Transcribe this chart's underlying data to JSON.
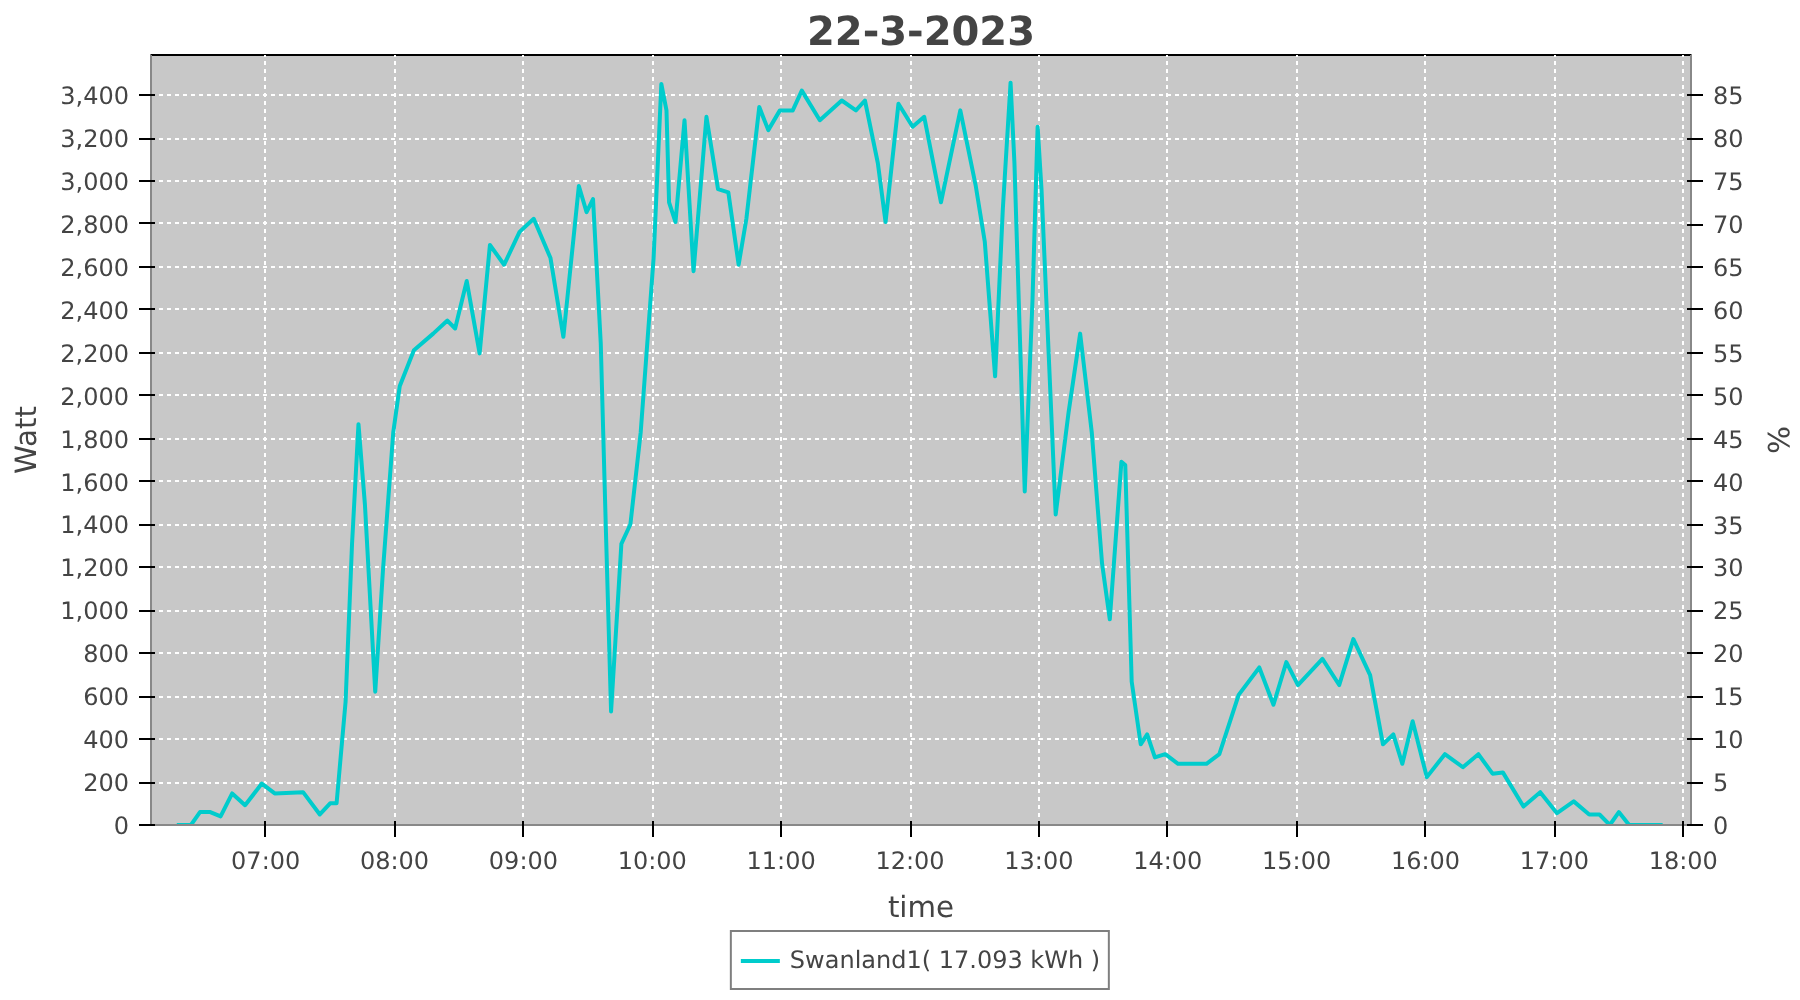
{
  "chart_data": {
    "type": "line",
    "title": "22-3-2023",
    "xlabel": "time",
    "ylabel": "Watt",
    "y2label": "%",
    "xlim": [
      6.11,
      18.06
    ],
    "ylim": [
      0,
      3587
    ],
    "y2lim": [
      0,
      89.7
    ],
    "xticks": [
      {
        "value": 7,
        "label": "07:00"
      },
      {
        "value": 8,
        "label": "08:00"
      },
      {
        "value": 9,
        "label": "09:00"
      },
      {
        "value": 10,
        "label": "10:00"
      },
      {
        "value": 11,
        "label": "11:00"
      },
      {
        "value": 12,
        "label": "12:00"
      },
      {
        "value": 13,
        "label": "13:00"
      },
      {
        "value": 14,
        "label": "14:00"
      },
      {
        "value": 15,
        "label": "15:00"
      },
      {
        "value": 16,
        "label": "16:00"
      },
      {
        "value": 17,
        "label": "17:00"
      },
      {
        "value": 18,
        "label": "18:00"
      }
    ],
    "yticks": [
      0,
      200,
      400,
      600,
      800,
      {
        "value": 1000,
        "label": "1,000"
      },
      {
        "value": 1200,
        "label": "1,200"
      },
      {
        "value": 1400,
        "label": "1,400"
      },
      {
        "value": 1600,
        "label": "1,600"
      },
      {
        "value": 1800,
        "label": "1,800"
      },
      {
        "value": 2000,
        "label": "2,000"
      },
      {
        "value": 2200,
        "label": "2,200"
      },
      {
        "value": 2400,
        "label": "2,400"
      },
      {
        "value": 2600,
        "label": "2,600"
      },
      {
        "value": 2800,
        "label": "2,800"
      },
      {
        "value": 3000,
        "label": "3,000"
      },
      {
        "value": 3200,
        "label": "3,200"
      },
      {
        "value": 3400,
        "label": "3,400"
      }
    ],
    "y2ticks": [
      0,
      5,
      10,
      15,
      20,
      25,
      30,
      35,
      40,
      45,
      50,
      55,
      60,
      65,
      70,
      75,
      80,
      85
    ],
    "grid": true,
    "legend": "bottom",
    "marker": "none",
    "line_style": "solid",
    "series": [
      {
        "name": "Swanland1( 17.093 kWh )",
        "color": "#00cccc",
        "x": [
          6.31,
          6.42,
          6.49,
          6.57,
          6.65,
          6.74,
          6.84,
          6.97,
          7.07,
          7.29,
          7.42,
          7.5,
          7.55,
          7.62,
          7.67,
          7.72,
          7.77,
          7.85,
          7.91,
          7.99,
          8.04,
          8.15,
          8.3,
          8.41,
          8.47,
          8.56,
          8.66,
          8.74,
          8.85,
          8.97,
          9.08,
          9.21,
          9.31,
          9.43,
          9.49,
          9.54,
          9.6,
          9.64,
          9.68,
          9.76,
          9.83,
          9.91,
          10.01,
          10.07,
          10.11,
          10.13,
          10.18,
          10.25,
          10.32,
          10.42,
          10.51,
          10.59,
          10.67,
          10.73,
          10.83,
          10.9,
          10.99,
          11.09,
          11.16,
          11.3,
          11.47,
          11.58,
          11.65,
          11.75,
          11.81,
          11.91,
          12.02,
          12.11,
          12.24,
          12.39,
          12.51,
          12.58,
          12.66,
          12.72,
          12.78,
          12.81,
          12.89,
          12.95,
          12.99,
          13.02,
          13.13,
          13.23,
          13.32,
          13.41,
          13.49,
          13.55,
          13.64,
          13.67,
          13.72,
          13.79,
          13.84,
          13.9,
          13.98,
          14.08,
          14.14,
          14.3,
          14.4,
          14.55,
          14.71,
          14.82,
          14.92,
          15.01,
          15.2,
          15.33,
          15.44,
          15.57,
          15.67,
          15.75,
          15.82,
          15.9,
          16.01,
          16.15,
          16.29,
          16.41,
          16.52,
          16.6,
          16.76,
          16.89,
          17.02,
          17.15,
          17.27,
          17.35,
          17.43,
          17.5,
          17.58,
          17.84
        ],
        "values": [
          0,
          0,
          60,
          60,
          40,
          147,
          92,
          193,
          147,
          153,
          49,
          101,
          101,
          575,
          1310,
          1867,
          1493,
          621,
          1187,
          1830,
          2044,
          2212,
          2289,
          2350,
          2313,
          2534,
          2197,
          2702,
          2610,
          2763,
          2824,
          2641,
          2274,
          2977,
          2855,
          2916,
          2243,
          1371,
          529,
          1310,
          1401,
          1830,
          2641,
          3452,
          3329,
          2901,
          2809,
          3283,
          2580,
          3299,
          2962,
          2947,
          2610,
          2824,
          3345,
          3237,
          3329,
          3329,
          3421,
          3283,
          3375,
          3329,
          3375,
          3084,
          2809,
          3360,
          3253,
          3299,
          2901,
          3329,
          2977,
          2717,
          2090,
          2870,
          3458,
          3084,
          1554,
          2442,
          3253,
          2962,
          1447,
          1922,
          2289,
          1830,
          1218,
          958,
          1692,
          1677,
          667,
          376,
          422,
          315,
          330,
          285,
          285,
          285,
          330,
          606,
          734,
          560,
          759,
          652,
          774,
          652,
          866,
          698,
          376,
          422,
          285,
          483,
          223,
          330,
          269,
          330,
          239,
          245,
          86,
          153,
          55,
          110,
          49,
          49,
          0,
          60,
          0,
          0
        ]
      }
    ]
  }
}
